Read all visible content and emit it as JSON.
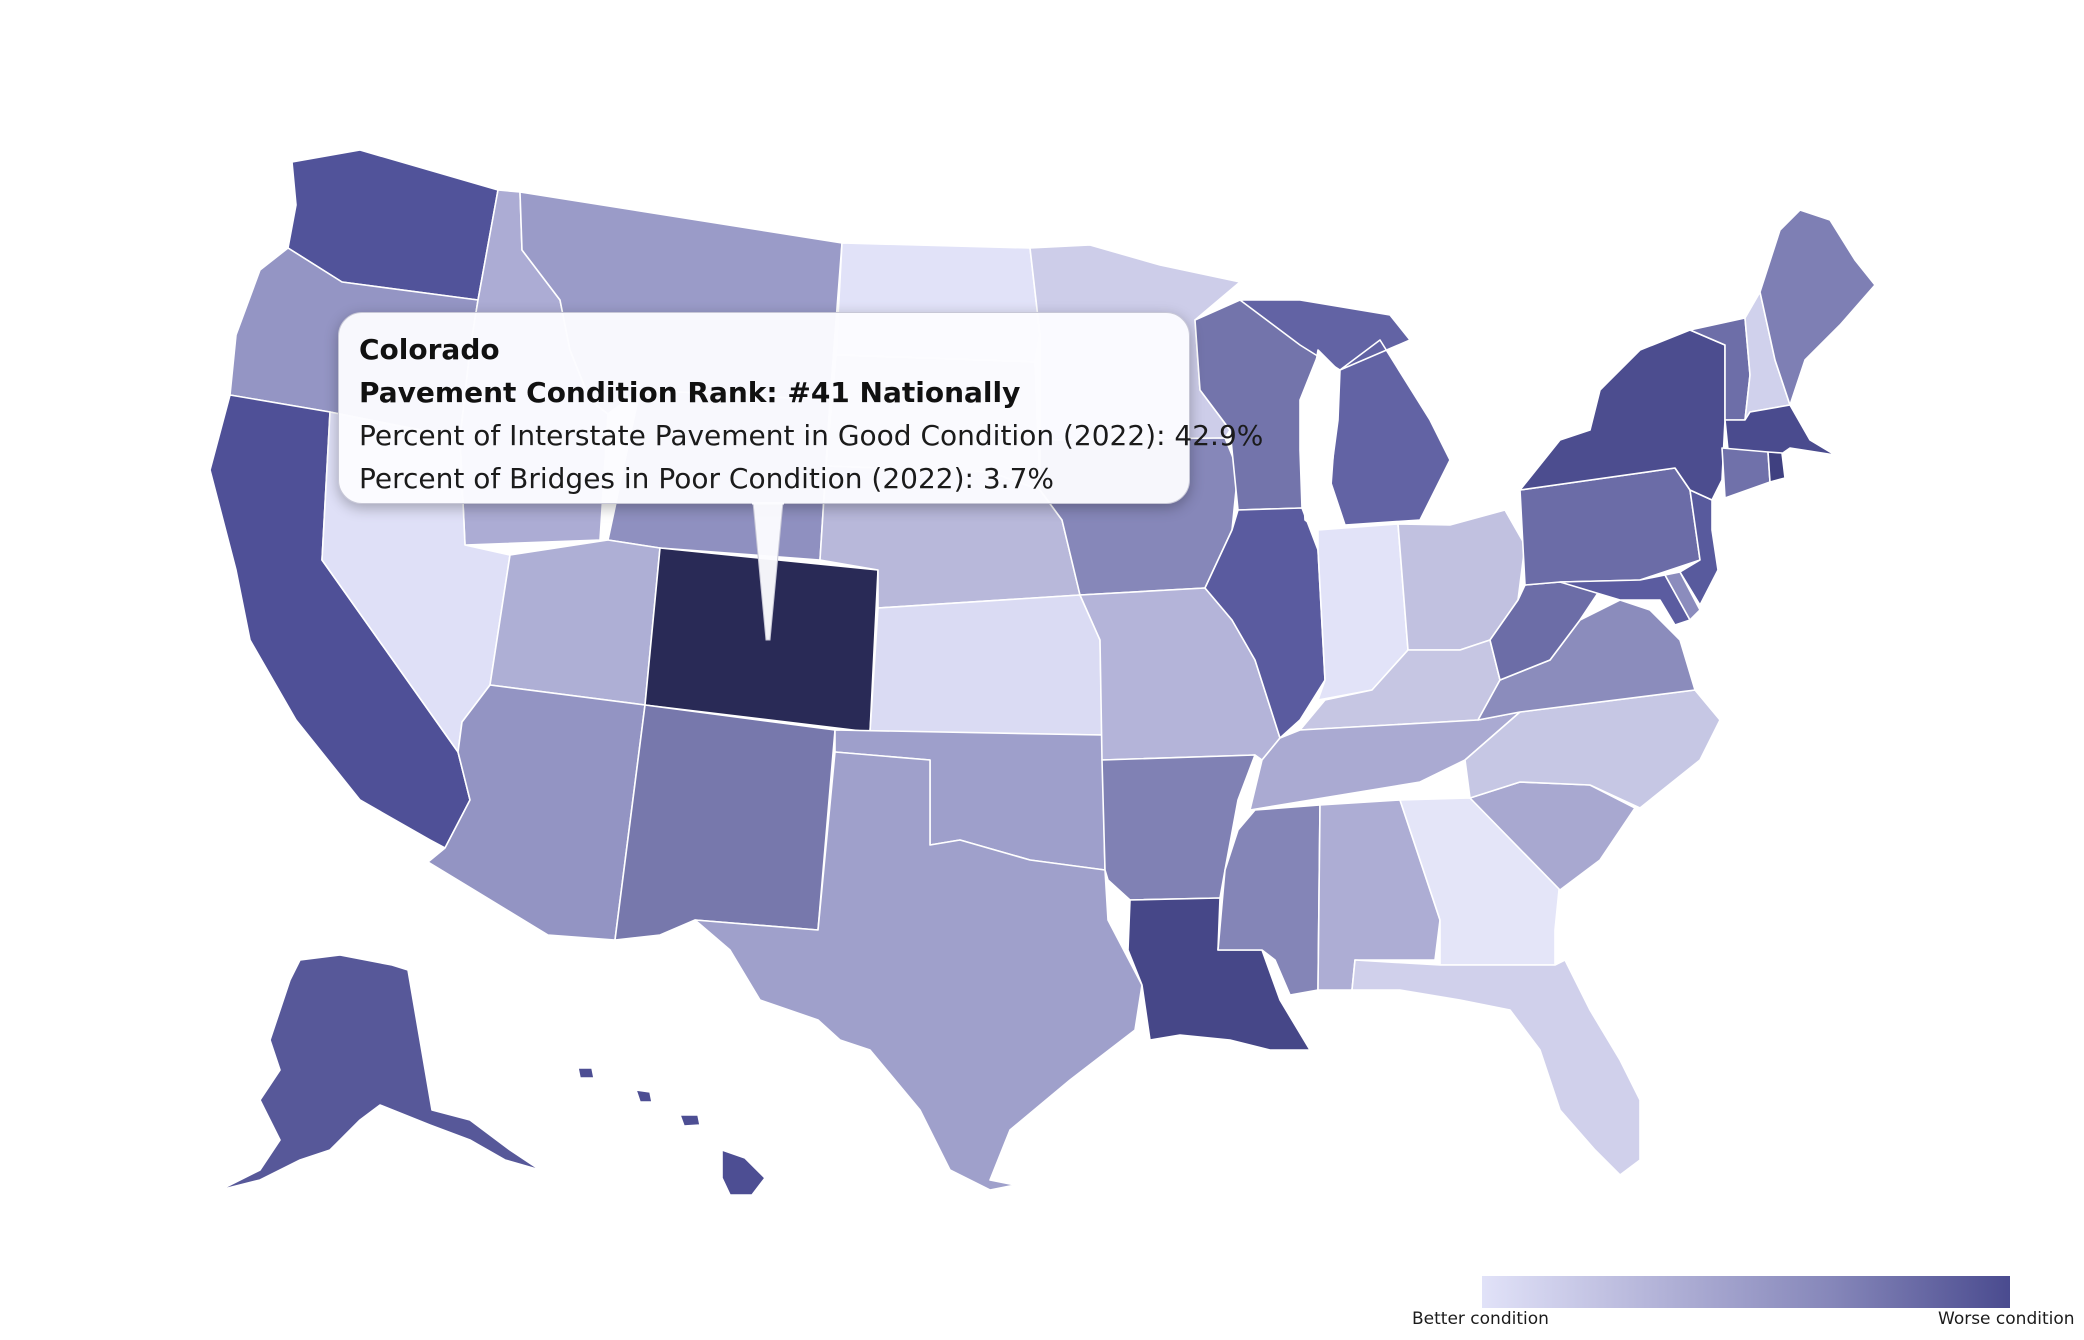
{
  "tooltip": {
    "state": "Colorado",
    "rank": "Pavement Condition Rank: #41 Nationally",
    "interstate": "Percent of Interstate Pavement in Good Condition (2022): 42.9%",
    "bridges": "Percent of Bridges in Poor Condition (2022): 3.7%"
  },
  "legend": {
    "low_label": "Better condition",
    "high_label": "Worse condition",
    "color_low": "#e1e2f8",
    "color_high": "#4a4b8f"
  },
  "highlighted_state": {
    "name": "Colorado",
    "color": "#292a56"
  },
  "states": [
    {
      "id": "WA",
      "color": "#51539a"
    },
    {
      "id": "OR",
      "color": "#9495c4"
    },
    {
      "id": "CA",
      "color": "#4f5097"
    },
    {
      "id": "ID",
      "color": "#acacd4"
    },
    {
      "id": "NV",
      "color": "#dfe0f7"
    },
    {
      "id": "MT",
      "color": "#9a9bc8"
    },
    {
      "id": "WY",
      "color": "#8f90c0"
    },
    {
      "id": "UT",
      "color": "#aeafd5"
    },
    {
      "id": "AZ",
      "color": "#9394c3"
    },
    {
      "id": "CO",
      "color": "#292a56"
    },
    {
      "id": "NM",
      "color": "#7778ac"
    },
    {
      "id": "ND",
      "color": "#e1e2f8"
    },
    {
      "id": "SD",
      "color": "#c9c9e6"
    },
    {
      "id": "NE",
      "color": "#b8b8da"
    },
    {
      "id": "KS",
      "color": "#dadbf3"
    },
    {
      "id": "OK",
      "color": "#9e9fcb"
    },
    {
      "id": "TX",
      "color": "#9fa0cb"
    },
    {
      "id": "MN",
      "color": "#cdcde9"
    },
    {
      "id": "IA",
      "color": "#8687b9"
    },
    {
      "id": "MO",
      "color": "#b4b4d9"
    },
    {
      "id": "AR",
      "color": "#8081b4"
    },
    {
      "id": "LA",
      "color": "#464788"
    },
    {
      "id": "WI",
      "color": "#7374ab"
    },
    {
      "id": "IL",
      "color": "#5a5b9f"
    },
    {
      "id": "MI",
      "color": "#6263a4"
    },
    {
      "id": "IN",
      "color": "#e2e3f8"
    },
    {
      "id": "OH",
      "color": "#c1c1e0"
    },
    {
      "id": "KY",
      "color": "#c6c6e3"
    },
    {
      "id": "TN",
      "color": "#aaaad2"
    },
    {
      "id": "MS",
      "color": "#8485b7"
    },
    {
      "id": "AL",
      "color": "#adadd4"
    },
    {
      "id": "GA",
      "color": "#e4e5f8"
    },
    {
      "id": "FL",
      "color": "#d0d0eb"
    },
    {
      "id": "SC",
      "color": "#a8a8d0"
    },
    {
      "id": "NC",
      "color": "#c6c7e4"
    },
    {
      "id": "VA",
      "color": "#8b8cbc"
    },
    {
      "id": "WV",
      "color": "#6c6da7"
    },
    {
      "id": "PA",
      "color": "#6b6ca7"
    },
    {
      "id": "NY",
      "color": "#4c4d8f"
    },
    {
      "id": "VT",
      "color": "#6d6ea8"
    },
    {
      "id": "NH",
      "color": "#d0d1ec"
    },
    {
      "id": "ME",
      "color": "#7e7fb4"
    },
    {
      "id": "MA",
      "color": "#4a4b8e"
    },
    {
      "id": "CT",
      "color": "#7071aa"
    },
    {
      "id": "RI",
      "color": "#3f4080"
    },
    {
      "id": "NJ",
      "color": "#585a9d"
    },
    {
      "id": "DE",
      "color": "#8b8cbd"
    },
    {
      "id": "MD",
      "color": "#5b5ca0"
    },
    {
      "id": "AK",
      "color": "#575899"
    },
    {
      "id": "HI",
      "color": "#4d4e93"
    }
  ]
}
